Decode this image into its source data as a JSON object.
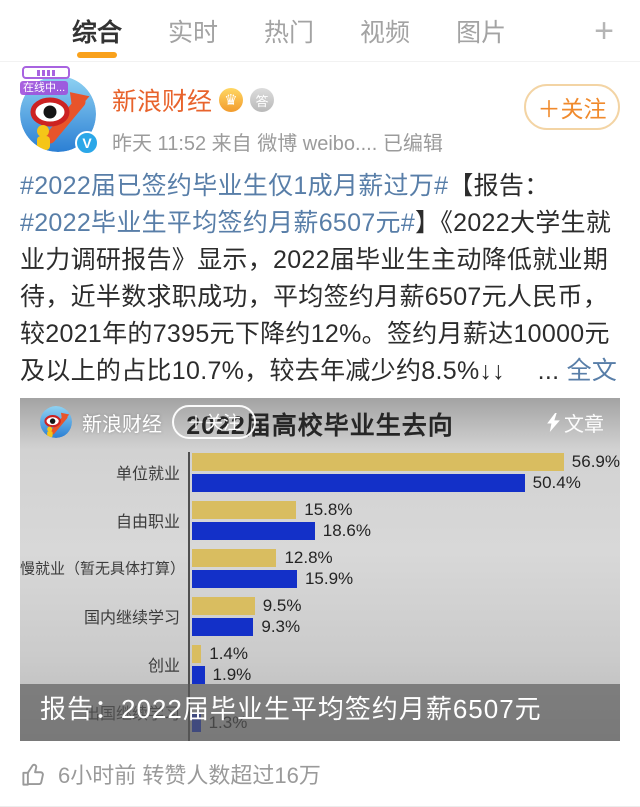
{
  "tabs": {
    "items": [
      {
        "label": "综合",
        "active": true
      },
      {
        "label": "实时",
        "active": false
      },
      {
        "label": "热门",
        "active": false
      },
      {
        "label": "视频",
        "active": false
      },
      {
        "label": "图片",
        "active": false
      }
    ],
    "plus_icon": "+"
  },
  "author": {
    "name": "新浪财经",
    "online_label": "在线中...",
    "badges": [
      {
        "type": "crown-badge",
        "glyph": "♛"
      },
      {
        "type": "qa-badge",
        "glyph": "答"
      }
    ],
    "meta": "昨天 11:52  来自 微博 weibo....  已编辑",
    "follow_label": "＋关注",
    "verified_glyph": "V"
  },
  "post": {
    "content_segments": [
      {
        "type": "link",
        "text": "#2022届已签约毕业生仅1成月薪过万#"
      },
      {
        "type": "text",
        "text": "【报告："
      },
      {
        "type": "link",
        "text": "#2022毕业生平均签约月薪6507元#"
      },
      {
        "type": "text",
        "text": "】《2022大学生就业力调研报告》显示，2022届毕业生主动降低就业期待，近半数求职成功，平均签约月薪6507元人民币，较2021年的7395元下降约12%。签约月薪达10000元及以上的占比10.7%，较去年减少约8.5%↓↓　 ... "
      },
      {
        "type": "link",
        "text": "全文"
      }
    ]
  },
  "embed": {
    "overlay": {
      "name": "新浪财经",
      "follow_label": "＋关注",
      "article_label": "文章"
    },
    "caption": "报告：2022届毕业生平均签约月薪6507元"
  },
  "chart_data": {
    "type": "bar",
    "orientation": "horizontal",
    "title": "2022届高校毕业生去向",
    "unit": "%",
    "categories": [
      "单位就业",
      "自由职业",
      "慢就业（暂无具体打算）",
      "国内继续学习",
      "创业",
      "出国继续学习"
    ],
    "series": [
      {
        "name": "yellow",
        "color": "#d9bd60",
        "values": [
          56.9,
          15.8,
          12.8,
          9.5,
          1.4,
          null
        ]
      },
      {
        "name": "blue",
        "color": "#1330c8",
        "values": [
          50.4,
          18.6,
          15.9,
          9.3,
          1.9,
          1.3
        ]
      }
    ],
    "value_suffix": "%",
    "xlim": [
      0,
      65
    ],
    "grid": false,
    "legend": false
  },
  "footer": {
    "text": "6小时前 转赞人数超过16万"
  },
  "colors": {
    "accent_orange": "#f9a11b",
    "username_orange": "#e8632c",
    "link_blue": "#587ea8",
    "bar_yellow": "#d9bd60",
    "bar_blue": "#1330c8",
    "verified_blue": "#2ba7e8"
  }
}
